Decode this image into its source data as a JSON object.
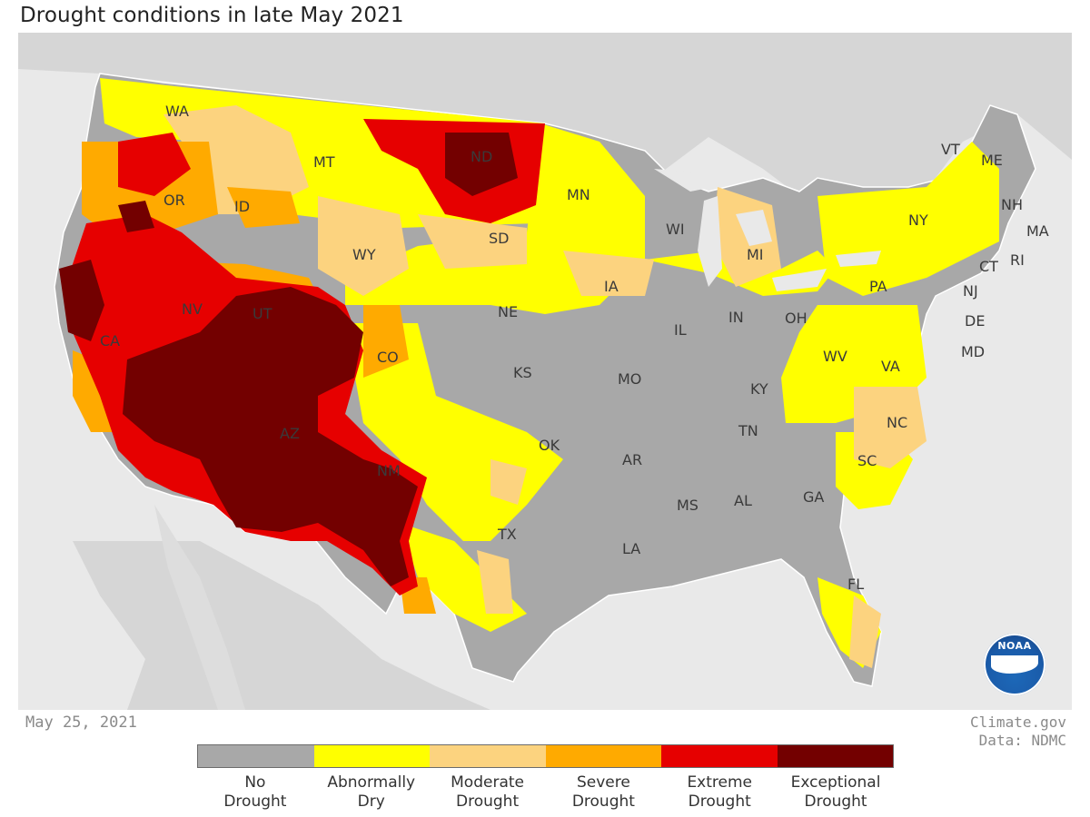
{
  "title": "Drought conditions in late May 2021",
  "date": "May 25, 2021",
  "credit": {
    "source": "Climate.gov",
    "data": "Data: NDMC"
  },
  "logo_text": "NOAA",
  "legend": [
    {
      "label": "No\nDrought",
      "color": "#a8a8a8"
    },
    {
      "label": "Abnormally\nDry",
      "color": "#ffff00"
    },
    {
      "label": "Moderate\nDrought",
      "color": "#fcd37f"
    },
    {
      "label": "Severe\nDrought",
      "color": "#ffaa00"
    },
    {
      "label": "Extreme\nDrought",
      "color": "#e60000"
    },
    {
      "label": "Exceptional\nDrought",
      "color": "#730000"
    }
  ],
  "states": [
    "WA",
    "OR",
    "CA",
    "ID",
    "NV",
    "MT",
    "WY",
    "UT",
    "AZ",
    "CO",
    "NM",
    "ND",
    "SD",
    "NE",
    "KS",
    "OK",
    "TX",
    "MN",
    "IA",
    "MO",
    "AR",
    "LA",
    "WI",
    "IL",
    "MI",
    "IN",
    "OH",
    "KY",
    "TN",
    "MS",
    "AL",
    "GA",
    "FL",
    "SC",
    "NC",
    "VA",
    "WV",
    "PA",
    "NY",
    "VT",
    "ME",
    "NH",
    "MA",
    "RI",
    "CT",
    "NJ",
    "DE",
    "MD"
  ]
}
